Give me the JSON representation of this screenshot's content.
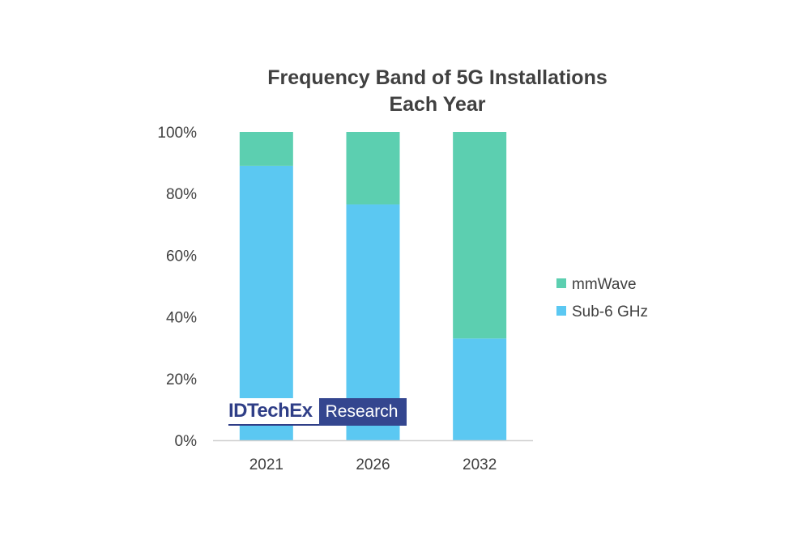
{
  "chart_data": {
    "type": "bar",
    "stacked": true,
    "title_lines": [
      "Frequency Band of 5G Installations",
      "Each Year"
    ],
    "categories": [
      "2021",
      "2026",
      "2032"
    ],
    "series": [
      {
        "name": "Sub-6 GHz",
        "values": [
          89,
          76.5,
          33
        ],
        "color": "#5bc8f2"
      },
      {
        "name": "mmWave",
        "values": [
          11,
          23.5,
          67
        ],
        "color": "#5ccfb0"
      }
    ],
    "ylim": [
      0,
      100
    ],
    "yticks": [
      "0%",
      "20%",
      "40%",
      "60%",
      "80%",
      "100%"
    ],
    "grid": false,
    "legend_position": "right",
    "legend_order": [
      "mmWave",
      "Sub-6 GHz"
    ]
  },
  "watermark": {
    "brand": "IDTechEx",
    "label": "Research"
  }
}
